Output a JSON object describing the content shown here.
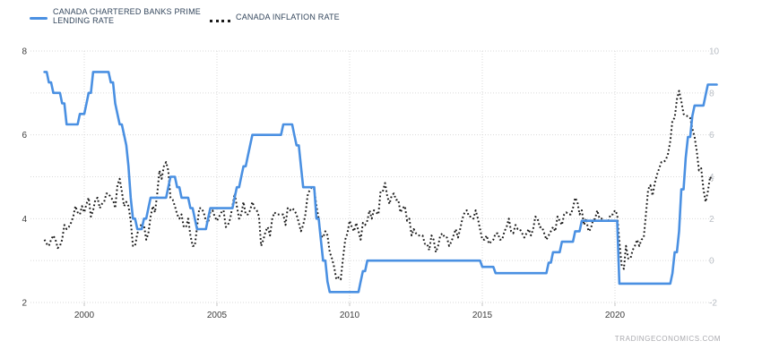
{
  "chart_data": {
    "type": "line",
    "source_watermark": "TRADINGECONOMICS.COM",
    "legend": [
      {
        "label": "CANADA CHARTERED BANKS PRIME LENDING RATE",
        "color": "#4a90e2",
        "style": "solid"
      },
      {
        "label": "CANADA INFLATION RATE",
        "color": "#1a1a1a",
        "style": "dotted"
      }
    ],
    "x_axis": {
      "tick_years": [
        2000,
        2005,
        2010,
        2015,
        2020
      ],
      "tick_labels": [
        "2000",
        "2005",
        "2010",
        "2015",
        "2020"
      ],
      "range_years": [
        1998.4,
        2024.0
      ]
    },
    "y_axis_left": {
      "min": 2,
      "max": 8,
      "grid_step": 1,
      "tick_values": [
        2,
        4,
        6,
        8
      ],
      "tick_labels": [
        "2",
        "4",
        "6",
        "8"
      ]
    },
    "y_axis_right": {
      "min": -2,
      "max": 10,
      "tick_values": [
        -2,
        0,
        2,
        4,
        6,
        8,
        10
      ],
      "tick_labels": [
        "-2",
        "0",
        "2",
        "4",
        "6",
        "8",
        "10"
      ]
    },
    "colors": {
      "prime_line": "#4a90e2",
      "inflation_line": "#1a1a1a",
      "grid": "#dadada",
      "axis_tick_mark": "#c6c6c6",
      "left_axis_text": "#3d3d3d",
      "x_axis_text": "#3d3d3d",
      "right_axis_text": "#b9bec5",
      "legend_text": "#33465c",
      "watermark_text": "#a9a9ae"
    },
    "series": [
      {
        "name": "CANADA CHARTERED BANKS PRIME LENDING RATE",
        "axis": "left",
        "style": "solid",
        "color": "#4a90e2",
        "start_year": 1998.5,
        "frequency": "monthly",
        "values": [
          7.5,
          7.5,
          7.25,
          7.25,
          7,
          7,
          7,
          7,
          6.75,
          6.75,
          6.25,
          6.25,
          6.25,
          6.25,
          6.25,
          6.25,
          6.5,
          6.5,
          6.5,
          6.75,
          7,
          7,
          7.5,
          7.5,
          7.5,
          7.5,
          7.5,
          7.5,
          7.5,
          7.5,
          7.25,
          7.25,
          6.75,
          6.5,
          6.25,
          6.25,
          6,
          5.75,
          5.25,
          4.5,
          4,
          4,
          3.75,
          3.75,
          3.75,
          4,
          4,
          4.25,
          4.5,
          4.5,
          4.5,
          4.5,
          4.5,
          4.5,
          4.5,
          4.5,
          4.75,
          5,
          5,
          5,
          4.75,
          4.75,
          4.5,
          4.5,
          4.5,
          4.5,
          4.25,
          4.25,
          4,
          3.75,
          3.75,
          3.75,
          3.75,
          3.75,
          4,
          4.25,
          4.25,
          4.25,
          4.25,
          4.25,
          4.25,
          4.25,
          4.25,
          4.25,
          4.25,
          4.25,
          4.5,
          4.75,
          4.75,
          5,
          5.25,
          5.25,
          5.5,
          5.75,
          6,
          6,
          6,
          6,
          6,
          6,
          6,
          6,
          6,
          6,
          6,
          6,
          6,
          6,
          6.25,
          6.25,
          6.25,
          6.25,
          6.25,
          6,
          5.75,
          5.75,
          5.25,
          4.75,
          4.75,
          4.75,
          4.75,
          4.75,
          4.75,
          4,
          4,
          3.5,
          3,
          3,
          2.5,
          2.25,
          2.25,
          2.25,
          2.25,
          2.25,
          2.25,
          2.25,
          2.25,
          2.25,
          2.25,
          2.25,
          2.25,
          2.25,
          2.25,
          2.5,
          2.75,
          2.75,
          3,
          3,
          3,
          3,
          3,
          3,
          3,
          3,
          3,
          3,
          3,
          3,
          3,
          3,
          3,
          3,
          3,
          3,
          3,
          3,
          3,
          3,
          3,
          3,
          3,
          3,
          3,
          3,
          3,
          3,
          3,
          3,
          3,
          3,
          3,
          3,
          3,
          3,
          3,
          3,
          3,
          3,
          3,
          3,
          3,
          3,
          3,
          3,
          3,
          3,
          3,
          3,
          2.85,
          2.85,
          2.85,
          2.85,
          2.85,
          2.85,
          2.7,
          2.7,
          2.7,
          2.7,
          2.7,
          2.7,
          2.7,
          2.7,
          2.7,
          2.7,
          2.7,
          2.7,
          2.7,
          2.7,
          2.7,
          2.7,
          2.7,
          2.7,
          2.7,
          2.7,
          2.7,
          2.7,
          2.7,
          2.7,
          2.95,
          2.95,
          3.2,
          3.2,
          3.2,
          3.2,
          3.45,
          3.45,
          3.45,
          3.45,
          3.45,
          3.45,
          3.7,
          3.7,
          3.7,
          3.95,
          3.95,
          3.95,
          3.95,
          3.95,
          3.95,
          3.95,
          3.95,
          3.95,
          3.95,
          3.95,
          3.95,
          3.95,
          3.95,
          3.95,
          3.95,
          3.95,
          2.45,
          2.45,
          2.45,
          2.45,
          2.45,
          2.45,
          2.45,
          2.45,
          2.45,
          2.45,
          2.45,
          2.45,
          2.45,
          2.45,
          2.45,
          2.45,
          2.45,
          2.45,
          2.45,
          2.45,
          2.45,
          2.45,
          2.45,
          2.45,
          2.7,
          3.2,
          3.2,
          3.7,
          4.7,
          4.7,
          5.45,
          5.95,
          5.95,
          6.45,
          6.7,
          6.7,
          6.7,
          6.7,
          6.7,
          6.95,
          7.2,
          7.2,
          7.2,
          7.2,
          7.2
        ]
      },
      {
        "name": "CANADA INFLATION RATE",
        "axis": "right",
        "style": "dotted",
        "color": "#1a1a1a",
        "start_year": 1998.5,
        "frequency": "monthly",
        "values": [
          1,
          0.8,
          0.7,
          1,
          1.2,
          1,
          0.6,
          0.7,
          1,
          1.7,
          1.5,
          1.6,
          1.8,
          2.1,
          2.6,
          2.3,
          2.2,
          2.6,
          2.3,
          2.7,
          3,
          2.1,
          2.4,
          2.9,
          3,
          2.5,
          2.7,
          2.8,
          3.2,
          3.2,
          3,
          2.9,
          2.5,
          3.6,
          3.9,
          3.3,
          2.6,
          2.8,
          2.6,
          1.9,
          0.7,
          0.7,
          1.3,
          1.5,
          1.8,
          1.7,
          1,
          1.3,
          2.1,
          2.6,
          2.3,
          3.2,
          4.3,
          3.9,
          4.5,
          4.7,
          4.3,
          3,
          2.9,
          2.6,
          2.2,
          2,
          2.2,
          1.6,
          1.6,
          2,
          1.2,
          0.7,
          0.7,
          1.6,
          2.5,
          2.5,
          2.3,
          1.9,
          1.8,
          2.3,
          2.4,
          2.1,
          1.9,
          2.1,
          2.3,
          2.4,
          1.6,
          1.7,
          2,
          2.6,
          3.2,
          2.6,
          2,
          2.2,
          2.8,
          2.2,
          2.2,
          2.4,
          2.8,
          2.5,
          2.4,
          2.1,
          0.7,
          1,
          1.4,
          1.6,
          1.2,
          2,
          2.3,
          2.2,
          2.2,
          2.2,
          2.2,
          1.7,
          2.5,
          2.4,
          2.5,
          2.4,
          2.2,
          1.8,
          1.4,
          1.7,
          2.2,
          3.1,
          3.4,
          3.5,
          3.4,
          2.6,
          2,
          1.2,
          1.1,
          1.4,
          1.2,
          0.4,
          0.1,
          -0.3,
          -0.9,
          -0.8,
          -0.9,
          0.1,
          1,
          1.3,
          1.9,
          1.6,
          1.4,
          1.8,
          1.4,
          1,
          1.8,
          1.7,
          1.9,
          2.4,
          2,
          2.4,
          2.3,
          2.2,
          3.3,
          3.3,
          3.7,
          3.1,
          2.7,
          3.1,
          3.2,
          2.9,
          2.9,
          2.3,
          2.5,
          2.6,
          1.9,
          2,
          1.2,
          1.5,
          1.3,
          1.2,
          1.2,
          1.2,
          0.8,
          0.8,
          0.5,
          1.2,
          1,
          0.4,
          0.7,
          1.2,
          1.3,
          1.1,
          1.1,
          0.7,
          0.9,
          1.2,
          1.5,
          1.1,
          1.5,
          2,
          2.3,
          2.4,
          2.1,
          2.1,
          2,
          2.4,
          2,
          1.5,
          1,
          1,
          1.2,
          0.8,
          0.9,
          1,
          1.3,
          1.3,
          1,
          1,
          1.4,
          1.6,
          2,
          1.4,
          1.3,
          1.7,
          1.5,
          1.5,
          1.3,
          1.1,
          1.3,
          1.5,
          1.2,
          1.5,
          2.1,
          2,
          1.6,
          1.6,
          1.3,
          1,
          1.2,
          1.4,
          1.6,
          1.4,
          2.1,
          1.9,
          1.7,
          2.2,
          2.3,
          2.2,
          2.2,
          2.5,
          3,
          2.8,
          2.2,
          2.4,
          1.7,
          2,
          1.4,
          1.5,
          1.9,
          2,
          2.4,
          2,
          2,
          1.9,
          1.9,
          1.9,
          2.2,
          2.2,
          2.4,
          2.2,
          0.9,
          -0.2,
          -0.4,
          0.7,
          0.1,
          0.1,
          0.5,
          0.7,
          1,
          0.7,
          1,
          1.1,
          2.2,
          3.4,
          3.6,
          3.1,
          3.7,
          4.1,
          4.4,
          4.7,
          4.7,
          4.8,
          5.1,
          5.7,
          6.7,
          6.8,
          7.7,
          8.1,
          7.6,
          7,
          6.9,
          6.9,
          6.8,
          6.3,
          5.9,
          5.2,
          4.3,
          4.4,
          3.4,
          2.8,
          3.3,
          4,
          3.8
        ]
      }
    ]
  }
}
